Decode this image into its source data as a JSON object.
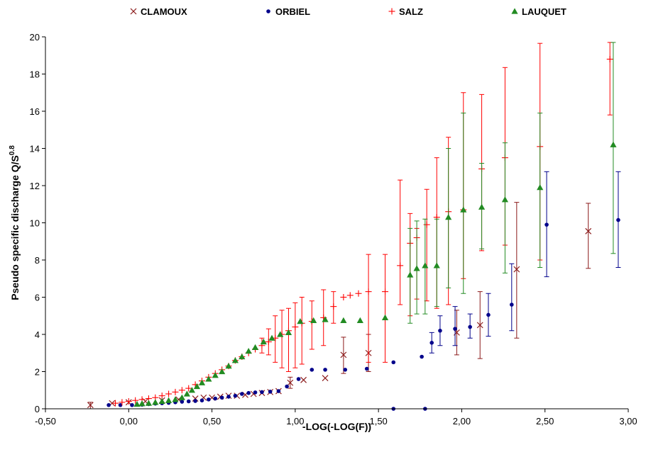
{
  "chart_data": {
    "type": "scatter",
    "title": "",
    "xlabel": "-LOG(-LOG(F))",
    "ylabel": "Pseudo specific discharge Q/S",
    "ylabel_sup": "0.8",
    "xlim": [
      -0.5,
      3.0
    ],
    "ylim": [
      0,
      20
    ],
    "x_ticks": [
      -0.5,
      0.0,
      0.5,
      1.0,
      1.5,
      2.0,
      2.5,
      3.0
    ],
    "x_tick_labels": [
      "-0,50",
      "0,00",
      "0,50",
      "1,00",
      "1,50",
      "2,00",
      "2,50",
      "3,00"
    ],
    "y_ticks": [
      0,
      2,
      4,
      6,
      8,
      10,
      12,
      14,
      16,
      18,
      20
    ],
    "y_tick_labels": [
      "0",
      "2",
      "4",
      "6",
      "8",
      "10",
      "12",
      "14",
      "16",
      "18",
      "20"
    ],
    "grid": false,
    "legend_position": "top",
    "series": [
      {
        "name": "CLAMOUX",
        "marker": "x",
        "color": "#8B1A1A",
        "points": [
          {
            "x": -0.23,
            "y": 0.2,
            "lo": 0.0,
            "hi": 0.35
          },
          {
            "x": -0.1,
            "y": 0.3
          },
          {
            "x": 0.0,
            "y": 0.35
          },
          {
            "x": 0.1,
            "y": 0.4
          },
          {
            "x": 0.2,
            "y": 0.45
          },
          {
            "x": 0.3,
            "y": 0.5
          },
          {
            "x": 0.4,
            "y": 0.55
          },
          {
            "x": 0.45,
            "y": 0.6
          },
          {
            "x": 0.5,
            "y": 0.6
          },
          {
            "x": 0.55,
            "y": 0.65
          },
          {
            "x": 0.6,
            "y": 0.7
          },
          {
            "x": 0.65,
            "y": 0.7
          },
          {
            "x": 0.7,
            "y": 0.75
          },
          {
            "x": 0.75,
            "y": 0.8
          },
          {
            "x": 0.8,
            "y": 0.85
          },
          {
            "x": 0.85,
            "y": 0.9
          },
          {
            "x": 0.9,
            "y": 0.95
          },
          {
            "x": 0.97,
            "y": 1.4,
            "lo": 1.1,
            "hi": 1.7
          },
          {
            "x": 1.05,
            "y": 1.55
          },
          {
            "x": 1.18,
            "y": 1.65
          },
          {
            "x": 1.29,
            "y": 2.9,
            "lo": 1.9,
            "hi": 3.85
          },
          {
            "x": 1.44,
            "y": 3.0,
            "lo": 2.0,
            "hi": 4.0
          },
          {
            "x": 1.97,
            "y": 4.1,
            "lo": 2.9,
            "hi": 5.3
          },
          {
            "x": 2.11,
            "y": 4.5,
            "lo": 2.7,
            "hi": 6.3
          },
          {
            "x": 2.33,
            "y": 7.5,
            "lo": 3.8,
            "hi": 11.1
          },
          {
            "x": 2.76,
            "y": 9.55,
            "lo": 7.55,
            "hi": 11.05
          }
        ]
      },
      {
        "name": "ORBIEL",
        "marker": "circle",
        "color": "#00008B",
        "points": [
          {
            "x": -0.12,
            "y": 0.2
          },
          {
            "x": -0.05,
            "y": 0.2
          },
          {
            "x": 0.02,
            "y": 0.2
          },
          {
            "x": 0.08,
            "y": 0.22
          },
          {
            "x": 0.12,
            "y": 0.25
          },
          {
            "x": 0.16,
            "y": 0.28
          },
          {
            "x": 0.2,
            "y": 0.3
          },
          {
            "x": 0.24,
            "y": 0.32
          },
          {
            "x": 0.28,
            "y": 0.35
          },
          {
            "x": 0.32,
            "y": 0.38
          },
          {
            "x": 0.36,
            "y": 0.4
          },
          {
            "x": 0.4,
            "y": 0.42
          },
          {
            "x": 0.44,
            "y": 0.45
          },
          {
            "x": 0.48,
            "y": 0.5
          },
          {
            "x": 0.52,
            "y": 0.55
          },
          {
            "x": 0.56,
            "y": 0.6
          },
          {
            "x": 0.6,
            "y": 0.65
          },
          {
            "x": 0.64,
            "y": 0.7
          },
          {
            "x": 0.68,
            "y": 0.8
          },
          {
            "x": 0.72,
            "y": 0.85
          },
          {
            "x": 0.76,
            "y": 0.88
          },
          {
            "x": 0.8,
            "y": 0.9
          },
          {
            "x": 0.85,
            "y": 0.92
          },
          {
            "x": 0.9,
            "y": 0.95
          },
          {
            "x": 0.95,
            "y": 1.2
          },
          {
            "x": 1.02,
            "y": 1.6
          },
          {
            "x": 1.1,
            "y": 2.1
          },
          {
            "x": 1.18,
            "y": 2.1
          },
          {
            "x": 1.3,
            "y": 2.1
          },
          {
            "x": 1.43,
            "y": 2.15
          },
          {
            "x": 1.59,
            "y": 2.5
          },
          {
            "x": 1.59,
            "y": 0.0
          },
          {
            "x": 1.76,
            "y": 2.8
          },
          {
            "x": 1.78,
            "y": 0.0
          },
          {
            "x": 1.82,
            "y": 3.55,
            "lo": 3.0,
            "hi": 4.1
          },
          {
            "x": 1.87,
            "y": 4.2,
            "lo": 3.4,
            "hi": 5.0
          },
          {
            "x": 1.96,
            "y": 4.3,
            "lo": 3.4,
            "hi": 5.5
          },
          {
            "x": 2.05,
            "y": 4.4,
            "lo": 3.8,
            "hi": 5.1
          },
          {
            "x": 2.16,
            "y": 5.05,
            "lo": 3.9,
            "hi": 6.2
          },
          {
            "x": 2.3,
            "y": 5.6,
            "lo": 4.2,
            "hi": 7.8
          },
          {
            "x": 2.51,
            "y": 9.9,
            "lo": 7.1,
            "hi": 12.75
          },
          {
            "x": 2.94,
            "y": 10.15,
            "lo": 7.6,
            "hi": 12.75
          }
        ]
      },
      {
        "name": "SALZ",
        "marker": "plus",
        "color": "#FF0000",
        "points": [
          {
            "x": -0.08,
            "y": 0.3
          },
          {
            "x": -0.04,
            "y": 0.35
          },
          {
            "x": 0.0,
            "y": 0.4
          },
          {
            "x": 0.04,
            "y": 0.45
          },
          {
            "x": 0.08,
            "y": 0.5
          },
          {
            "x": 0.12,
            "y": 0.55
          },
          {
            "x": 0.16,
            "y": 0.6
          },
          {
            "x": 0.2,
            "y": 0.7
          },
          {
            "x": 0.24,
            "y": 0.8
          },
          {
            "x": 0.28,
            "y": 0.9
          },
          {
            "x": 0.32,
            "y": 1.0
          },
          {
            "x": 0.36,
            "y": 1.1
          },
          {
            "x": 0.4,
            "y": 1.3
          },
          {
            "x": 0.44,
            "y": 1.5
          },
          {
            "x": 0.48,
            "y": 1.7
          },
          {
            "x": 0.52,
            "y": 1.9
          },
          {
            "x": 0.56,
            "y": 2.1
          },
          {
            "x": 0.6,
            "y": 2.3
          },
          {
            "x": 0.64,
            "y": 2.6
          },
          {
            "x": 0.68,
            "y": 2.8
          },
          {
            "x": 0.72,
            "y": 3.0
          },
          {
            "x": 0.76,
            "y": 3.2
          },
          {
            "x": 0.8,
            "y": 3.4,
            "lo": 3.0,
            "hi": 3.8
          },
          {
            "x": 0.84,
            "y": 3.6,
            "lo": 2.9,
            "hi": 4.3
          },
          {
            "x": 0.88,
            "y": 3.8,
            "lo": 2.5,
            "hi": 5.0
          },
          {
            "x": 0.92,
            "y": 4.0,
            "lo": 2.2,
            "hi": 5.3
          },
          {
            "x": 0.96,
            "y": 4.2,
            "lo": 2.0,
            "hi": 5.4
          },
          {
            "x": 1.0,
            "y": 4.4,
            "lo": 2.2,
            "hi": 5.7
          },
          {
            "x": 1.04,
            "y": 4.6,
            "lo": 2.4,
            "hi": 6.0
          },
          {
            "x": 1.1,
            "y": 4.7,
            "lo": 3.2,
            "hi": 5.8
          },
          {
            "x": 1.17,
            "y": 4.9,
            "lo": 3.4,
            "hi": 6.4
          },
          {
            "x": 1.23,
            "y": 5.5,
            "lo": 4.6,
            "hi": 6.3
          },
          {
            "x": 1.29,
            "y": 6.0
          },
          {
            "x": 1.33,
            "y": 6.1
          },
          {
            "x": 1.38,
            "y": 6.2
          },
          {
            "x": 1.44,
            "y": 6.3,
            "lo": 2.5,
            "hi": 8.3
          },
          {
            "x": 1.54,
            "y": 6.3,
            "lo": 2.5,
            "hi": 8.3
          },
          {
            "x": 1.63,
            "y": 7.7,
            "lo": 5.6,
            "hi": 12.3
          },
          {
            "x": 1.69,
            "y": 8.9,
            "lo": 5.0,
            "hi": 10.5
          },
          {
            "x": 1.73,
            "y": 9.2,
            "lo": 5.9,
            "hi": 9.7
          },
          {
            "x": 1.79,
            "y": 9.9,
            "lo": 5.8,
            "hi": 11.8
          },
          {
            "x": 1.85,
            "y": 10.3,
            "lo": 5.4,
            "hi": 13.5
          },
          {
            "x": 1.92,
            "y": 10.6,
            "lo": 5.6,
            "hi": 14.6
          },
          {
            "x": 2.01,
            "y": 10.7,
            "lo": 7.0,
            "hi": 17.0
          },
          {
            "x": 2.12,
            "y": 12.9,
            "lo": 8.5,
            "hi": 16.9
          },
          {
            "x": 2.26,
            "y": 13.5,
            "lo": 8.8,
            "hi": 18.35
          },
          {
            "x": 2.47,
            "y": 14.1,
            "lo": 8.0,
            "hi": 19.65
          },
          {
            "x": 2.89,
            "y": 18.8,
            "lo": 15.8,
            "hi": 19.7
          }
        ]
      },
      {
        "name": "LAUQUET",
        "marker": "triangle",
        "color": "#228B22",
        "points": [
          {
            "x": 0.05,
            "y": 0.25
          },
          {
            "x": 0.08,
            "y": 0.28
          },
          {
            "x": 0.12,
            "y": 0.3
          },
          {
            "x": 0.16,
            "y": 0.35
          },
          {
            "x": 0.2,
            "y": 0.4
          },
          {
            "x": 0.24,
            "y": 0.45
          },
          {
            "x": 0.28,
            "y": 0.5
          },
          {
            "x": 0.32,
            "y": 0.6
          },
          {
            "x": 0.35,
            "y": 0.8
          },
          {
            "x": 0.38,
            "y": 1.0
          },
          {
            "x": 0.41,
            "y": 1.2
          },
          {
            "x": 0.44,
            "y": 1.4
          },
          {
            "x": 0.48,
            "y": 1.6
          },
          {
            "x": 0.52,
            "y": 1.8
          },
          {
            "x": 0.56,
            "y": 2.0
          },
          {
            "x": 0.6,
            "y": 2.3
          },
          {
            "x": 0.64,
            "y": 2.6
          },
          {
            "x": 0.68,
            "y": 2.8
          },
          {
            "x": 0.72,
            "y": 3.1
          },
          {
            "x": 0.76,
            "y": 3.3
          },
          {
            "x": 0.81,
            "y": 3.6
          },
          {
            "x": 0.86,
            "y": 3.8
          },
          {
            "x": 0.91,
            "y": 4.0
          },
          {
            "x": 0.96,
            "y": 4.1
          },
          {
            "x": 1.03,
            "y": 4.7
          },
          {
            "x": 1.11,
            "y": 4.75
          },
          {
            "x": 1.18,
            "y": 4.8
          },
          {
            "x": 1.29,
            "y": 4.75
          },
          {
            "x": 1.39,
            "y": 4.75
          },
          {
            "x": 1.54,
            "y": 4.9
          },
          {
            "x": 1.69,
            "y": 7.2,
            "lo": 4.6,
            "hi": 9.7
          },
          {
            "x": 1.73,
            "y": 7.55,
            "lo": 5.1,
            "hi": 10.1
          },
          {
            "x": 1.78,
            "y": 7.7,
            "lo": 5.1,
            "hi": 10.2
          },
          {
            "x": 1.85,
            "y": 7.7,
            "lo": 5.5,
            "hi": 10.2
          },
          {
            "x": 1.92,
            "y": 10.3,
            "lo": 6.5,
            "hi": 14.0
          },
          {
            "x": 2.01,
            "y": 10.7,
            "lo": 6.2,
            "hi": 15.9
          },
          {
            "x": 2.12,
            "y": 10.85,
            "lo": 8.6,
            "hi": 13.2
          },
          {
            "x": 2.26,
            "y": 11.25,
            "lo": 7.3,
            "hi": 14.3
          },
          {
            "x": 2.47,
            "y": 11.9,
            "lo": 7.6,
            "hi": 15.9
          },
          {
            "x": 2.91,
            "y": 14.2,
            "lo": 8.35,
            "hi": 19.7
          }
        ]
      }
    ]
  }
}
